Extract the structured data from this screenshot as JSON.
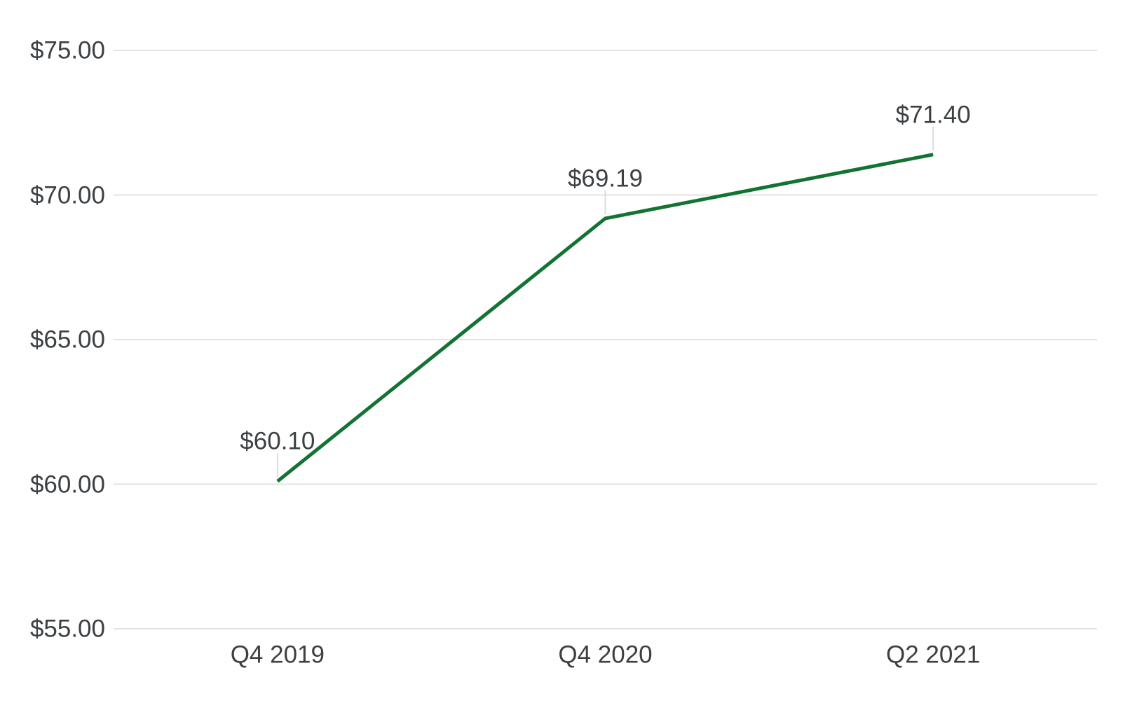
{
  "chart_data": {
    "type": "line",
    "title": "",
    "xlabel": "",
    "ylabel": "",
    "categories": [
      "Q4 2019",
      "Q4 2020",
      "Q2 2021"
    ],
    "values": [
      60.1,
      69.19,
      71.4
    ],
    "data_labels": [
      "$60.10",
      "$69.19",
      "$71.40"
    ],
    "y_ticks": [
      {
        "label": "$75.00",
        "value": 75
      },
      {
        "label": "$70.00",
        "value": 70
      },
      {
        "label": "$65.00",
        "value": 65
      },
      {
        "label": "$60.00",
        "value": 60
      },
      {
        "label": "$55.00",
        "value": 55
      }
    ],
    "ylim": [
      55,
      75
    ],
    "grid": true,
    "legend": "none",
    "colors": {
      "line": "#137333",
      "gridline": "#e3e3e3",
      "leader_line": "#dcdcdc",
      "axis_label": "#3c4043",
      "data_label": "#3c4043",
      "background": "#ffffff"
    }
  }
}
